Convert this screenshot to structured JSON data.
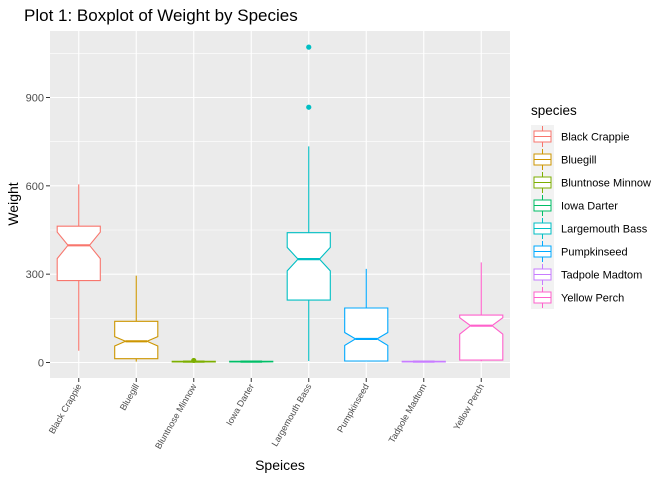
{
  "chart_data": {
    "type": "boxplot",
    "title": "Plot 1: Boxplot of Weight by Species",
    "xlabel": "Speices",
    "ylabel": "Weight",
    "ylim": [
      -30,
      1110
    ],
    "y_ticks": [
      0,
      300,
      600,
      900
    ],
    "grid": true,
    "notched": true,
    "legend": {
      "title": "species",
      "position": "right",
      "entries": [
        "Black Crappie",
        "Bluegill",
        "Bluntnose Minnow",
        "Iowa Darter",
        "Largemouth Bass",
        "Pumpkinseed",
        "Tadpole Madtom",
        "Yellow Perch"
      ]
    },
    "categories": [
      "Black Crappie",
      "Bluegill",
      "Bluntnose Minnow",
      "Iowa Darter",
      "Largemouth Bass",
      "Pumpkinseed",
      "Tadpole Madtom",
      "Yellow Perch"
    ],
    "series": [
      {
        "species": "Black Crappie",
        "color": "#F8766D",
        "min": 40,
        "q1": 278,
        "median": 398,
        "q3": 463,
        "max": 605,
        "notch_low": 353,
        "notch_high": 443,
        "outliers": []
      },
      {
        "species": "Bluegill",
        "color": "#CD9600",
        "min": 3,
        "q1": 13,
        "median": 72,
        "q3": 140,
        "max": 295,
        "notch_low": 56,
        "notch_high": 88,
        "outliers": []
      },
      {
        "species": "Bluntnose Minnow",
        "color": "#7CAE00",
        "min": 1,
        "q1": 2,
        "median": 3,
        "q3": 4,
        "max": 6,
        "notch_low": 2.5,
        "notch_high": 3.5,
        "outliers": [
          7
        ]
      },
      {
        "species": "Iowa Darter",
        "color": "#00BE67",
        "min": 1,
        "q1": 2,
        "median": 3,
        "q3": 4,
        "max": 5,
        "notch_low": 2.5,
        "notch_high": 3.5,
        "outliers": []
      },
      {
        "species": "Largemouth Bass",
        "color": "#00BFC4",
        "min": 5,
        "q1": 212,
        "median": 351,
        "q3": 441,
        "max": 734,
        "notch_low": 311,
        "notch_high": 391,
        "outliers": [
          867,
          1071
        ]
      },
      {
        "species": "Pumpkinseed",
        "color": "#00A9FF",
        "min": 5,
        "q1": 5,
        "median": 80,
        "q3": 185,
        "max": 318,
        "notch_low": 58,
        "notch_high": 102,
        "outliers": []
      },
      {
        "species": "Tadpole Madtom",
        "color": "#C77CFF",
        "min": 1,
        "q1": 2,
        "median": 3,
        "q3": 4,
        "max": 5,
        "notch_low": 2.5,
        "notch_high": 3.5,
        "outliers": []
      },
      {
        "species": "Yellow Perch",
        "color": "#FF61CC",
        "min": 4,
        "q1": 8,
        "median": 125,
        "q3": 161,
        "max": 340,
        "notch_low": 96,
        "notch_high": 152,
        "outliers": []
      }
    ]
  }
}
